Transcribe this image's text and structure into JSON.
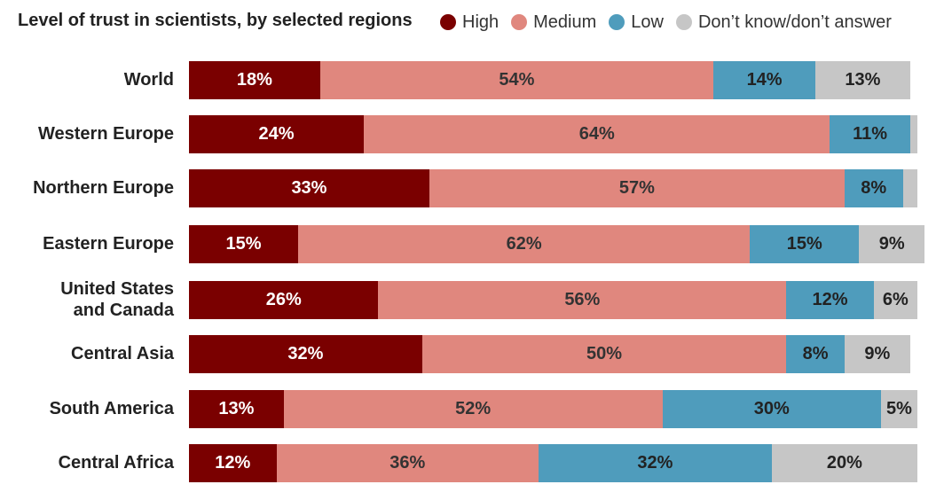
{
  "chart_data": {
    "type": "bar",
    "orientation": "horizontal",
    "stacked": true,
    "title": "Level of trust in scientists, by selected regions",
    "legend_position": "top",
    "categories": [
      "World",
      "Western Europe",
      "Northern Europe",
      "Eastern Europe",
      "United States and Canada",
      "Central Asia",
      "South America",
      "Central Africa"
    ],
    "category_lines": [
      [
        "World"
      ],
      [
        "Western Europe"
      ],
      [
        "Northern Europe"
      ],
      [
        "Eastern Europe"
      ],
      [
        "United States",
        "and Canada"
      ],
      [
        "Central Asia"
      ],
      [
        "South America"
      ],
      [
        "Central Africa"
      ]
    ],
    "series": [
      {
        "name": "High",
        "color": "#7a0000",
        "label_color": "#ffffff",
        "values": [
          18,
          24,
          33,
          15,
          26,
          32,
          13,
          12
        ],
        "labels": [
          "18%",
          "24%",
          "33%",
          "15%",
          "26%",
          "32%",
          "13%",
          "12%"
        ]
      },
      {
        "name": "Medium",
        "color": "#e0877e",
        "label_color": "#333333",
        "values": [
          54,
          64,
          57,
          62,
          56,
          50,
          52,
          36
        ],
        "labels": [
          "54%",
          "64%",
          "57%",
          "62%",
          "56%",
          "50%",
          "52%",
          "36%"
        ]
      },
      {
        "name": "Low",
        "color": "#4f9cbc",
        "label_color": "#222222",
        "values": [
          14,
          11,
          8,
          15,
          12,
          8,
          30,
          32
        ],
        "labels": [
          "14%",
          "11%",
          "8%",
          "15%",
          "12%",
          "8%",
          "30%",
          "32%"
        ]
      },
      {
        "name": "Don’t know/don’t answer",
        "color": "#c6c6c6",
        "label_color": "#222222",
        "values": [
          13,
          1,
          2,
          9,
          6,
          9,
          5,
          20
        ],
        "labels": [
          "13%",
          "",
          "",
          "9%",
          "6%",
          "9%",
          "5%",
          "20%"
        ]
      }
    ],
    "xlim": [
      0,
      100
    ],
    "grid": false
  }
}
